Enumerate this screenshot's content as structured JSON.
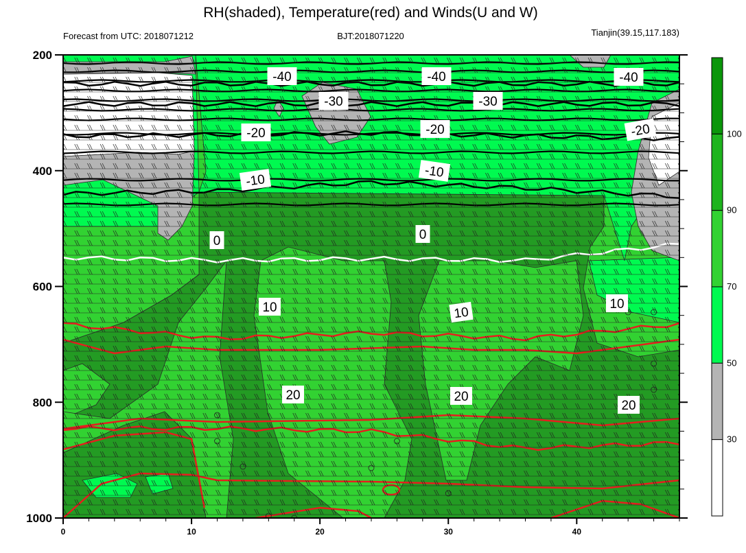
{
  "colors": {
    "rh_below_30": "#ffffff",
    "rh_30_50": "#b4b4b4",
    "rh_50_70": "#00fa50",
    "rh_70_90": "#32d232",
    "rh_90_100": "#1eb41e",
    "rh_above_100": "#0a960a",
    "dark_band": "#239b23",
    "temperature": "#e61e1e",
    "freezing_line": "#ffffff",
    "upper_isotherms": "#000000"
  },
  "chart_data": {
    "type": "heatmap",
    "title": "RH(shaded), Temperature(red) and Winds(U and W)",
    "subtitles": {
      "left": "Forecast from UTC: 2018071212",
      "center": "BJT:2018071220",
      "right": "Tianjin(39.15,117.183)"
    },
    "xlabel": "",
    "ylabel": "",
    "xlim": [
      0,
      48
    ],
    "ylim": [
      1000,
      200
    ],
    "x_ticks": [
      0,
      10,
      20,
      30,
      40
    ],
    "y_ticks": [
      200,
      400,
      600,
      800,
      1000
    ],
    "colorbar": {
      "levels": [
        30,
        50,
        70,
        90,
        100
      ],
      "labels": [
        "30",
        "50",
        "70",
        "90",
        "100"
      ]
    },
    "temperature_contours": [
      {
        "value": -40,
        "label": "-40",
        "pressure": [
          250,
          250,
          250,
          250,
          250
        ]
      },
      {
        "value": -30,
        "label": "-30",
        "pressure": [
          285,
          285,
          285,
          285,
          285
        ]
      },
      {
        "value": -20,
        "label": "-20",
        "pressure": [
          340,
          338,
          335,
          340,
          345
        ]
      },
      {
        "value": -10,
        "label": "-10",
        "pressure": [
          440,
          435,
          420,
          430,
          445
        ]
      },
      {
        "value": 0,
        "label": "0",
        "pressure": [
          550,
          555,
          552,
          555,
          527
        ]
      },
      {
        "value": 10,
        "label": "10",
        "pressure": [
          665,
          690,
          680,
          690,
          665
        ]
      },
      {
        "value": 20,
        "label": "20",
        "pressure": [
          845,
          845,
          850,
          880,
          870
        ]
      }
    ],
    "contour_label_texts": [
      "-40",
      "-40",
      "-40",
      "-30",
      "-30",
      "-20",
      "-20",
      "-20",
      "-10",
      "-10",
      "0",
      "0",
      "10",
      "10",
      "10",
      "20",
      "20",
      "20"
    ]
  }
}
